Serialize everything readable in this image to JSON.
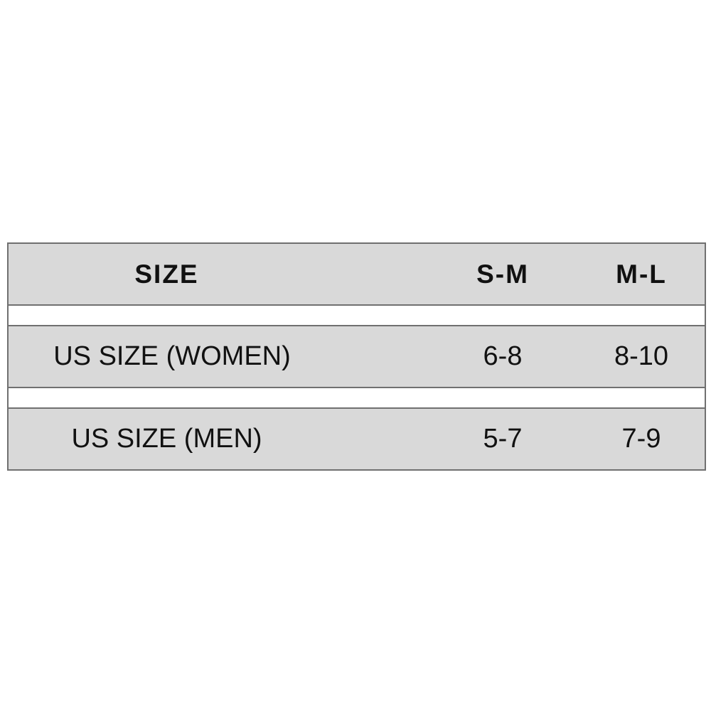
{
  "table": {
    "header": [
      "SIZE",
      "S-M",
      "M-L"
    ],
    "rows": [
      [
        "US SIZE (WOMEN)",
        "6-8",
        "8-10"
      ],
      [
        "US SIZE (MEN)",
        "5-7",
        "7-9"
      ]
    ]
  },
  "colors": {
    "row_fill": "#d9d9d9",
    "border": "#707070",
    "text": "#111111"
  }
}
